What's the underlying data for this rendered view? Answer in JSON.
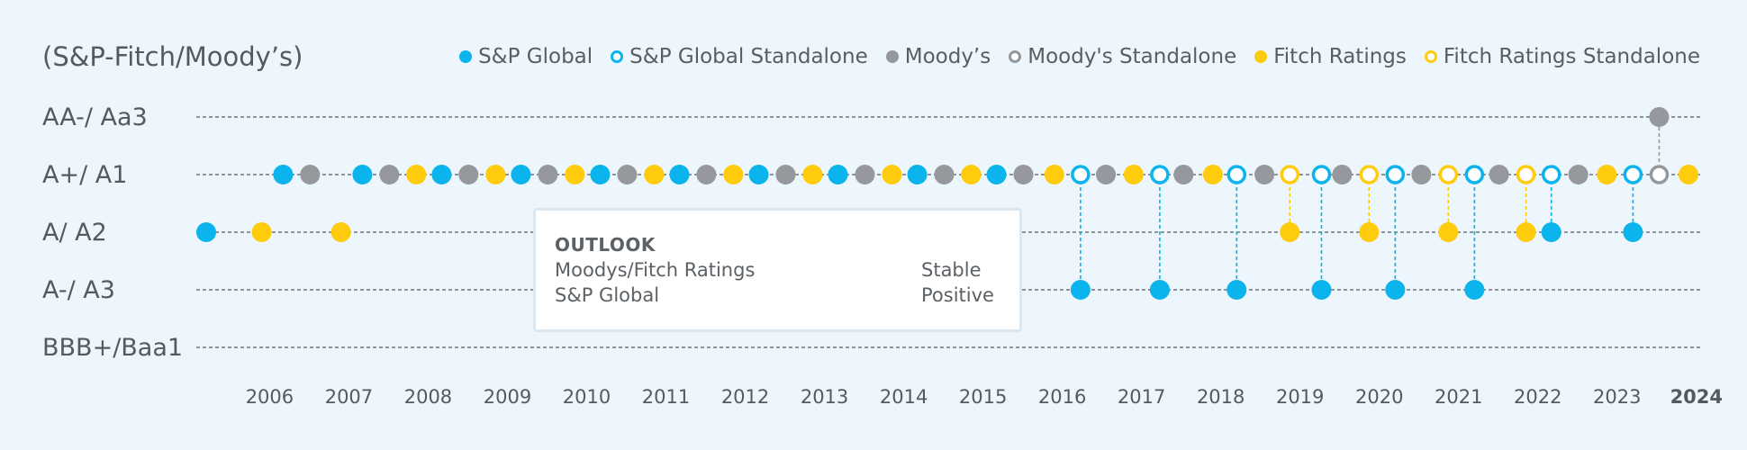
{
  "colors": {
    "sp": "#0bb4ec",
    "moodys": "#95989c",
    "fitch": "#fecc0c",
    "grid": "#555a5f",
    "text": "#555a5f"
  },
  "legend": [
    {
      "label": "S&P Global",
      "color": "#0bb4ec",
      "style": "filled"
    },
    {
      "label": "S&P Global Standalone",
      "color": "#0bb4ec",
      "style": "open"
    },
    {
      "label": "Moody’s",
      "color": "#95989c",
      "style": "filled"
    },
    {
      "label": "Moody's Standalone",
      "color": "#95989c",
      "style": "open"
    },
    {
      "label": "Fitch Ratings",
      "color": "#fecc0c",
      "style": "filled"
    },
    {
      "label": "Fitch Ratings Standalone",
      "color": "#fecc0c",
      "style": "open"
    }
  ],
  "outlook": {
    "title": "OUTLOOK",
    "rows": [
      {
        "agency": "Moodys/Fitch Ratings",
        "value": "Stable"
      },
      {
        "agency": "S&P Global",
        "value": "Positive"
      }
    ]
  },
  "chart_data": {
    "type": "scatter",
    "title": "(S&P-Fitch/Moody’s)",
    "y_categories": [
      "BBB+/Baa1",
      "A-/ A3",
      "A/ A2",
      "A+/ A1",
      "AA-/ Aa3"
    ],
    "x_ticks": [
      "2006",
      "2007",
      "2008",
      "2009",
      "2010",
      "2011",
      "2012",
      "2013",
      "2014",
      "2015",
      "2016",
      "2017",
      "2018",
      "2019",
      "2020",
      "2021",
      "2022",
      "2023",
      "2024"
    ],
    "x_bold_tick": "2024",
    "xlim": [
      2005.65,
      2024.35
    ],
    "grid": "dashed horizontal",
    "legend_position": "top-right",
    "series": [
      {
        "name": "S&P Global",
        "color": "#0bb4ec",
        "style": "filled",
        "points": [
          {
            "x": 2005.65,
            "y": "A/ A2"
          },
          {
            "x": 2006.62,
            "y": "A+/ A1"
          },
          {
            "x": 2007.62,
            "y": "A+/ A1"
          },
          {
            "x": 2008.62,
            "y": "A+/ A1"
          },
          {
            "x": 2009.62,
            "y": "A+/ A1"
          },
          {
            "x": 2010.62,
            "y": "A+/ A1"
          },
          {
            "x": 2011.62,
            "y": "A+/ A1"
          },
          {
            "x": 2012.62,
            "y": "A+/ A1"
          },
          {
            "x": 2013.62,
            "y": "A+/ A1"
          },
          {
            "x": 2014.62,
            "y": "A+/ A1"
          },
          {
            "x": 2015.62,
            "y": "A+/ A1"
          },
          {
            "x": 2016.68,
            "y": "A-/ A3"
          },
          {
            "x": 2017.68,
            "y": "A-/ A3"
          },
          {
            "x": 2018.65,
            "y": "A-/ A3"
          },
          {
            "x": 2019.72,
            "y": "A-/ A3"
          },
          {
            "x": 2020.65,
            "y": "A-/ A3"
          },
          {
            "x": 2021.65,
            "y": "A-/ A3"
          },
          {
            "x": 2022.62,
            "y": "A/ A2"
          },
          {
            "x": 2023.65,
            "y": "A/ A2"
          }
        ]
      },
      {
        "name": "S&P Global Standalone",
        "color": "#0bb4ec",
        "style": "open",
        "points": [
          {
            "x": 2016.68,
            "y": "A+/ A1"
          },
          {
            "x": 2017.68,
            "y": "A+/ A1"
          },
          {
            "x": 2018.65,
            "y": "A+/ A1"
          },
          {
            "x": 2019.72,
            "y": "A+/ A1"
          },
          {
            "x": 2020.65,
            "y": "A+/ A1"
          },
          {
            "x": 2021.65,
            "y": "A+/ A1"
          },
          {
            "x": 2022.62,
            "y": "A+/ A1"
          },
          {
            "x": 2023.65,
            "y": "A+/ A1"
          }
        ]
      },
      {
        "name": "Moody’s",
        "color": "#95989c",
        "style": "filled",
        "points": [
          {
            "x": 2006.96,
            "y": "A+/ A1"
          },
          {
            "x": 2007.96,
            "y": "A+/ A1"
          },
          {
            "x": 2008.96,
            "y": "A+/ A1"
          },
          {
            "x": 2009.96,
            "y": "A+/ A1"
          },
          {
            "x": 2010.96,
            "y": "A+/ A1"
          },
          {
            "x": 2011.96,
            "y": "A+/ A1"
          },
          {
            "x": 2012.96,
            "y": "A+/ A1"
          },
          {
            "x": 2013.96,
            "y": "A+/ A1"
          },
          {
            "x": 2014.96,
            "y": "A+/ A1"
          },
          {
            "x": 2015.96,
            "y": "A+/ A1"
          },
          {
            "x": 2017.0,
            "y": "A+/ A1"
          },
          {
            "x": 2017.98,
            "y": "A+/ A1"
          },
          {
            "x": 2019.0,
            "y": "A+/ A1"
          },
          {
            "x": 2019.98,
            "y": "A+/ A1"
          },
          {
            "x": 2020.98,
            "y": "A+/ A1"
          },
          {
            "x": 2021.96,
            "y": "A+/ A1"
          },
          {
            "x": 2022.96,
            "y": "A+/ A1"
          },
          {
            "x": 2023.98,
            "y": "AA-/ Aa3"
          }
        ]
      },
      {
        "name": "Moody's Standalone",
        "color": "#95989c",
        "style": "open",
        "points": [
          {
            "x": 2023.98,
            "y": "A+/ A1"
          }
        ]
      },
      {
        "name": "Fitch Ratings",
        "color": "#fecc0c",
        "style": "filled",
        "points": [
          {
            "x": 2006.35,
            "y": "A/ A2"
          },
          {
            "x": 2007.35,
            "y": "A/ A2"
          },
          {
            "x": 2008.3,
            "y": "A+/ A1"
          },
          {
            "x": 2009.3,
            "y": "A+/ A1"
          },
          {
            "x": 2010.3,
            "y": "A+/ A1"
          },
          {
            "x": 2011.3,
            "y": "A+/ A1"
          },
          {
            "x": 2012.3,
            "y": "A+/ A1"
          },
          {
            "x": 2013.3,
            "y": "A+/ A1"
          },
          {
            "x": 2014.3,
            "y": "A+/ A1"
          },
          {
            "x": 2015.3,
            "y": "A+/ A1"
          },
          {
            "x": 2016.35,
            "y": "A+/ A1"
          },
          {
            "x": 2017.35,
            "y": "A+/ A1"
          },
          {
            "x": 2018.35,
            "y": "A+/ A1"
          },
          {
            "x": 2019.32,
            "y": "A/ A2"
          },
          {
            "x": 2020.32,
            "y": "A/ A2"
          },
          {
            "x": 2021.32,
            "y": "A/ A2"
          },
          {
            "x": 2022.3,
            "y": "A/ A2"
          },
          {
            "x": 2023.32,
            "y": "A+/ A1"
          },
          {
            "x": 2024.35,
            "y": "A+/ A1"
          }
        ]
      },
      {
        "name": "Fitch Ratings Standalone",
        "color": "#fecc0c",
        "style": "open",
        "points": [
          {
            "x": 2019.32,
            "y": "A+/ A1"
          },
          {
            "x": 2020.32,
            "y": "A+/ A1"
          },
          {
            "x": 2021.32,
            "y": "A+/ A1"
          },
          {
            "x": 2022.3,
            "y": "A+/ A1"
          }
        ]
      }
    ]
  }
}
